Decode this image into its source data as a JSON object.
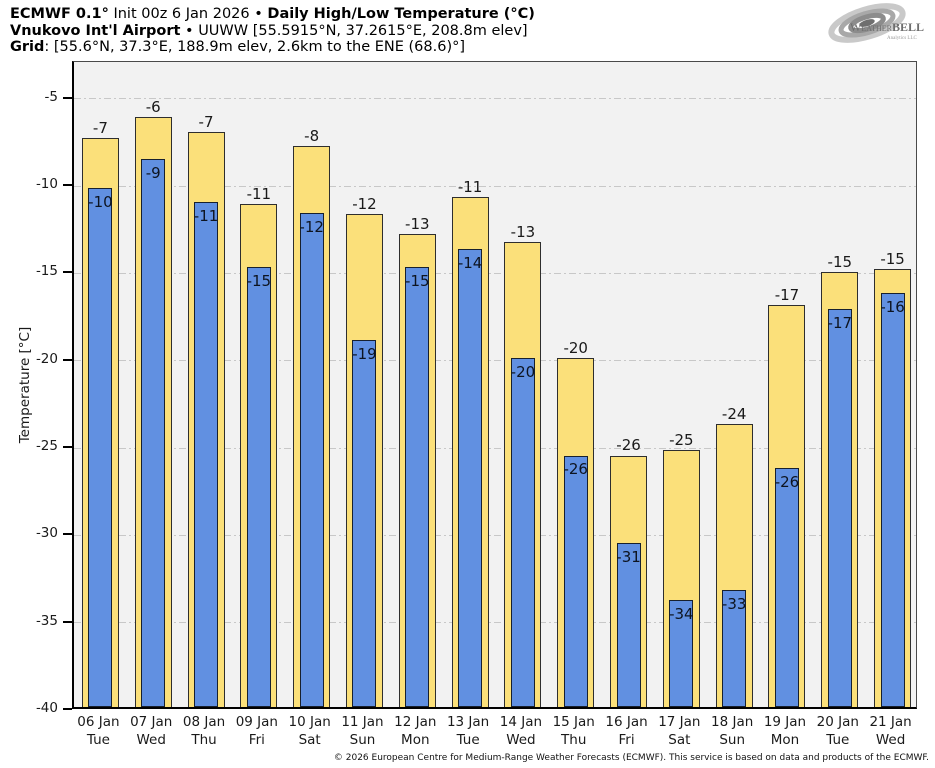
{
  "header": {
    "l1a": "ECMWF 0.1°",
    "l1b": " Init 00z 6 Jan 2026 • ",
    "l1c": "Daily High/Low Temperature (°C)",
    "l2a": "Vnukovo Int'l Airport",
    "l2b": " • UUWW [55.5915°N, 37.2615°E, 208.8m elev]",
    "l3a": "Grid",
    "l3b": ": [55.6°N, 37.3°E, 188.9m elev, 2.6km to the ENE (68.6)°]"
  },
  "logo": {
    "name_small_caps": "Weather",
    "name_bold": "BELL",
    "sub": "Analytics LLC"
  },
  "chart_data": {
    "type": "bar",
    "title": "Daily High/Low Temperature (°C)",
    "ylabel": "Temperature [°C]",
    "ylim": [
      -40,
      -2.9
    ],
    "yticks": [
      -5,
      -10,
      -15,
      -20,
      -25,
      -30,
      -35,
      -40
    ],
    "gridlines": [
      -5,
      -10,
      -15,
      -20,
      -25,
      -30,
      -35
    ],
    "grid_style": "dash-dot",
    "legend_position": "none",
    "categories": [
      {
        "date": "06 Jan",
        "weekday": "Tue"
      },
      {
        "date": "07 Jan",
        "weekday": "Wed"
      },
      {
        "date": "08 Jan",
        "weekday": "Thu"
      },
      {
        "date": "09 Jan",
        "weekday": "Fri"
      },
      {
        "date": "10 Jan",
        "weekday": "Sat"
      },
      {
        "date": "11 Jan",
        "weekday": "Sun"
      },
      {
        "date": "12 Jan",
        "weekday": "Mon"
      },
      {
        "date": "13 Jan",
        "weekday": "Tue"
      },
      {
        "date": "14 Jan",
        "weekday": "Wed"
      },
      {
        "date": "15 Jan",
        "weekday": "Thu"
      },
      {
        "date": "16 Jan",
        "weekday": "Fri"
      },
      {
        "date": "17 Jan",
        "weekday": "Sat"
      },
      {
        "date": "18 Jan",
        "weekday": "Sun"
      },
      {
        "date": "19 Jan",
        "weekday": "Mon"
      },
      {
        "date": "20 Jan",
        "weekday": "Tue"
      },
      {
        "date": "21 Jan",
        "weekday": "Wed"
      }
    ],
    "series": [
      {
        "name": "Daily High",
        "color": "#FBE07A",
        "values": [
          -7,
          -6,
          -7,
          -11,
          -8,
          -12,
          -13,
          -11,
          -13,
          -20,
          -26,
          -25,
          -24,
          -17,
          -15,
          -15
        ],
        "values_precise": [
          -7.4,
          -6.2,
          -7.1,
          -11.2,
          -7.9,
          -11.8,
          -12.9,
          -10.8,
          -13.4,
          -20.0,
          -25.6,
          -25.3,
          -23.8,
          -17.0,
          -15.1,
          -14.9
        ]
      },
      {
        "name": "Daily Low",
        "color": "#6190E1",
        "values": [
          -10,
          -9,
          -11,
          -15,
          -12,
          -19,
          -15,
          -14,
          -20,
          -26,
          -31,
          -34,
          -33,
          -26,
          -17,
          -16
        ],
        "values_precise": [
          -10.3,
          -8.6,
          -11.1,
          -14.8,
          -11.7,
          -19.0,
          -14.8,
          -13.8,
          -20.0,
          -25.6,
          -30.6,
          -33.9,
          -33.3,
          -26.3,
          -17.2,
          -16.3
        ]
      }
    ]
  },
  "footer": {
    "copyright": "© 2026 European Centre for Medium-Range Weather Forecasts (ECMWF). This service is based on data and products of the ECMWF."
  }
}
